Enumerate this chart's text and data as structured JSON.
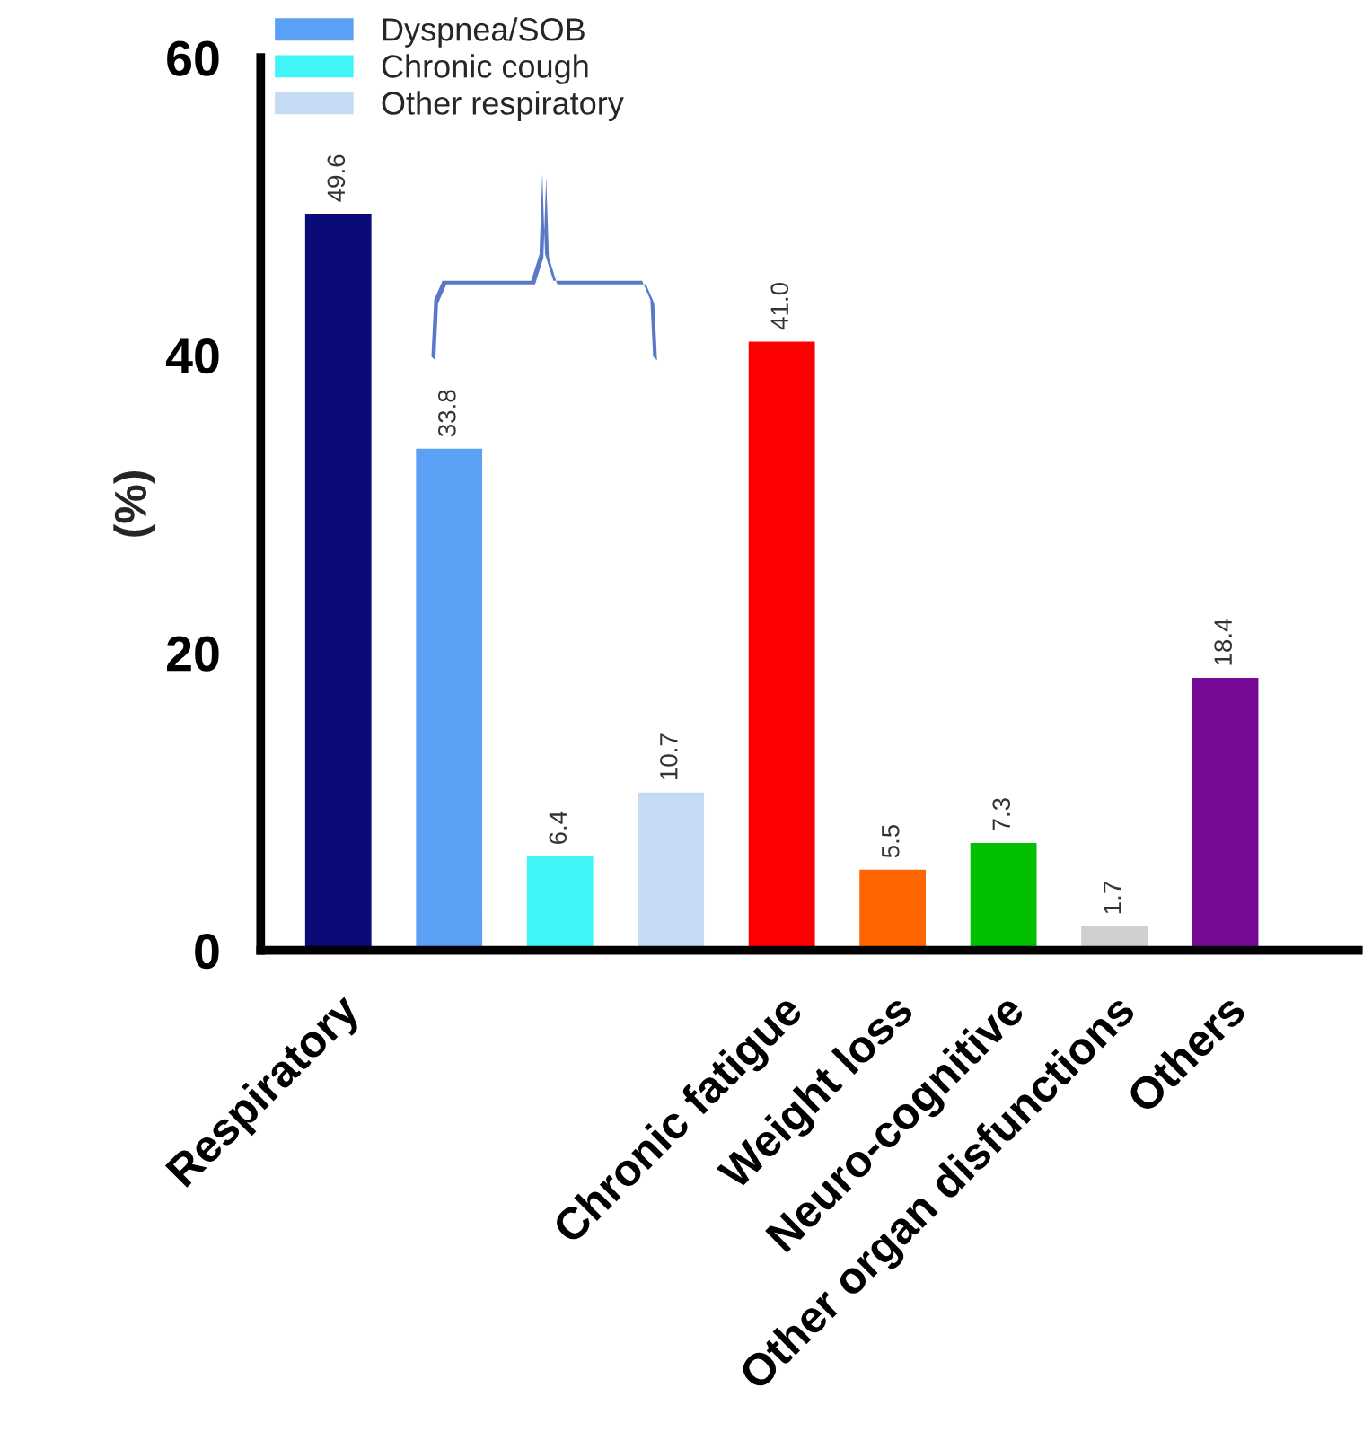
{
  "chart_data": {
    "type": "bar",
    "categories": [
      "Respiratory",
      null,
      null,
      null,
      "Chronic fatigue",
      "Weight loss",
      "Neuro-cognitive",
      "Other organ disfunctions",
      "Others"
    ],
    "series": [
      {
        "colors": [
          "#0a0a78",
          null,
          null,
          null,
          "#ff0000",
          "#ff6600",
          "#00c000",
          "#d0d0d0",
          "#760a96"
        ],
        "values": [
          49.6,
          null,
          null,
          null,
          41.0,
          5.5,
          7.3,
          1.7,
          18.4
        ],
        "value_labels": [
          "49.6",
          null,
          null,
          null,
          "41.0",
          "5.5",
          "7.3",
          "1.7",
          "18.4"
        ]
      },
      {
        "name": "Dyspnea/SOB",
        "color": "#5aa0f5",
        "values": [
          null,
          33.8,
          null,
          null,
          null,
          null,
          null,
          null,
          null
        ],
        "value_labels": [
          null,
          "33.8",
          null,
          null,
          null,
          null,
          null,
          null,
          null
        ]
      },
      {
        "name": "Chronic cough",
        "color": "#3ff5f5",
        "values": [
          null,
          null,
          6.4,
          null,
          null,
          null,
          null,
          null,
          null
        ],
        "value_labels": [
          null,
          null,
          "6.4",
          null,
          null,
          null,
          null,
          null,
          null
        ]
      },
      {
        "name": "Other respiratory",
        "color": "#c5daf5",
        "values": [
          null,
          null,
          null,
          10.7,
          null,
          null,
          null,
          null,
          null
        ],
        "value_labels": [
          null,
          null,
          null,
          "10.7",
          null,
          null,
          null,
          null,
          null
        ]
      }
    ],
    "ylabel": "(%)",
    "ylim": [
      0,
      60
    ],
    "yticks": [
      0,
      20,
      40,
      60
    ],
    "legend": "top left",
    "grid": false
  }
}
